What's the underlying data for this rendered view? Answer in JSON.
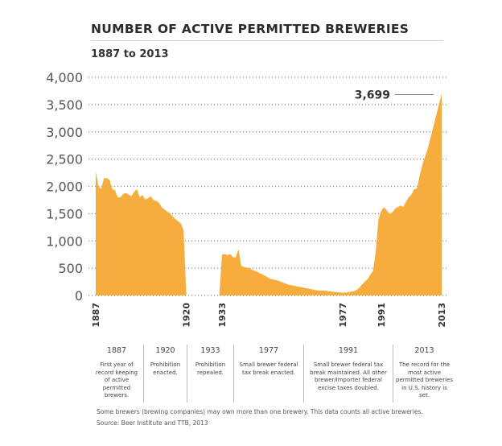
{
  "chart_data": {
    "type": "area",
    "title": "NUMBER OF ACTIVE PERMITTED BREWERIES",
    "subtitle": "1887 to 2013",
    "xlabel": "",
    "ylabel": "",
    "xlim": [
      1887,
      2013
    ],
    "ylim": [
      0,
      4000
    ],
    "y_ticks": [
      0,
      500,
      1000,
      1500,
      2000,
      2500,
      3000,
      3500,
      4000
    ],
    "y_tick_labels": [
      "0",
      "500",
      "1,000",
      "1,500",
      "2,000",
      "2,500",
      "3,000",
      "3,500",
      "4,000"
    ],
    "x_ticks": [
      1887,
      1920,
      1933,
      1977,
      1991,
      2013
    ],
    "grid": "horizontal-dotted",
    "color": "#F7AD3E",
    "series": [
      {
        "x": [
          1887,
          1888,
          1889,
          1890,
          1891,
          1892,
          1893,
          1894,
          1895,
          1896,
          1897,
          1898,
          1899,
          1900,
          1901,
          1902,
          1903,
          1904,
          1905,
          1906,
          1907,
          1908,
          1909,
          1910,
          1911,
          1912,
          1913,
          1914,
          1915,
          1916,
          1917,
          1918,
          1919,
          1920,
          1921,
          1922,
          1923,
          1924,
          1925,
          1926,
          1927,
          1928,
          1929,
          1930,
          1931,
          1932,
          1933,
          1934,
          1935,
          1936,
          1937,
          1938,
          1939,
          1940,
          1941,
          1942,
          1943,
          1944,
          1945,
          1946,
          1947,
          1948,
          1949,
          1950,
          1951,
          1952,
          1953,
          1954,
          1955,
          1956,
          1957,
          1958,
          1959,
          1960,
          1961,
          1962,
          1963,
          1964,
          1965,
          1966,
          1967,
          1968,
          1969,
          1970,
          1971,
          1972,
          1973,
          1974,
          1975,
          1976,
          1977,
          1978,
          1979,
          1980,
          1981,
          1982,
          1983,
          1984,
          1985,
          1986,
          1987,
          1988,
          1989,
          1990,
          1991,
          1992,
          1993,
          1994,
          1995,
          1996,
          1997,
          1998,
          1999,
          2000,
          2001,
          2002,
          2003,
          2004,
          2005,
          2006,
          2007,
          2008,
          2009,
          2010,
          2011,
          2012,
          2013
        ],
        "values": [
          2270,
          2000,
          1950,
          2150,
          2150,
          2120,
          1950,
          1930,
          1800,
          1800,
          1860,
          1880,
          1850,
          1820,
          1900,
          1950,
          1800,
          1840,
          1760,
          1780,
          1820,
          1750,
          1730,
          1700,
          1620,
          1580,
          1540,
          1510,
          1450,
          1400,
          1360,
          1320,
          1200,
          0,
          0,
          0,
          0,
          0,
          0,
          0,
          0,
          0,
          0,
          0,
          0,
          0,
          750,
          760,
          740,
          760,
          700,
          700,
          850,
          540,
          520,
          510,
          500,
          470,
          450,
          430,
          400,
          380,
          350,
          320,
          300,
          290,
          280,
          260,
          240,
          220,
          200,
          190,
          180,
          170,
          160,
          150,
          140,
          130,
          120,
          110,
          100,
          90,
          90,
          90,
          85,
          80,
          70,
          65,
          60,
          55,
          50,
          50,
          60,
          70,
          80,
          100,
          140,
          200,
          250,
          300,
          380,
          450,
          800,
          1400,
          1550,
          1620,
          1560,
          1500,
          1520,
          1590,
          1620,
          1650,
          1620,
          1720,
          1800,
          1850,
          1950,
          1960,
          2200,
          2400,
          2550,
          2700,
          2900,
          3100,
          3300,
          3500,
          3699
        ]
      }
    ],
    "annotations": [
      {
        "label": "3,699",
        "x": 2013,
        "y": 3699
      }
    ]
  },
  "events": [
    {
      "year": "1887",
      "text": "First year of record keeping of active permitted brewers."
    },
    {
      "year": "1920",
      "text": "Prohibition enacted."
    },
    {
      "year": "1933",
      "text": "Prohibition repealed."
    },
    {
      "year": "1977",
      "text": "Small brewer federal tax break enacted."
    },
    {
      "year": "1991",
      "text": "Small brewer federal tax break maintained. All other brewer/importer federal excise taxes doubled."
    },
    {
      "year": "2013",
      "text": "The record for the most active permitted breweries in U.S. history is set."
    }
  ],
  "footnote": "Some brewers (brewing companies) may own more than one brewery. This data counts all active breweries.",
  "source": "Source: Beer Institute and TTB, 2013"
}
